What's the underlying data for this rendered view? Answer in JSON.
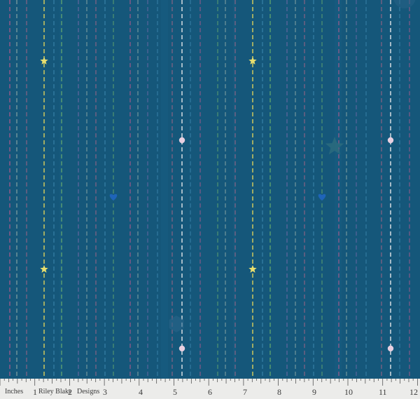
{
  "fabric": {
    "background": "#15577a",
    "motifs": {
      "star_color": "#e9df6e",
      "dot_color": "#e8cfe0",
      "heart_color": "#1f64b8",
      "ghost_star_color": "#2d6d7e",
      "ghost_hex_color": "#2a6488"
    },
    "stripe_colors": [
      "#c05a8f",
      "#f4eec8",
      "#e6d85a",
      "#4fa0c8",
      "#7cc06a",
      "#8b6fb2",
      "#f0f0f0",
      "#d86a8a"
    ]
  },
  "ruler": {
    "unit_label": "Inches",
    "brand_1": "Riley Blake",
    "brand_2": "Designs",
    "numbers": [
      "1",
      "2",
      "3",
      "4",
      "5",
      "6",
      "7",
      "8",
      "9",
      "10",
      "11",
      "12"
    ]
  }
}
